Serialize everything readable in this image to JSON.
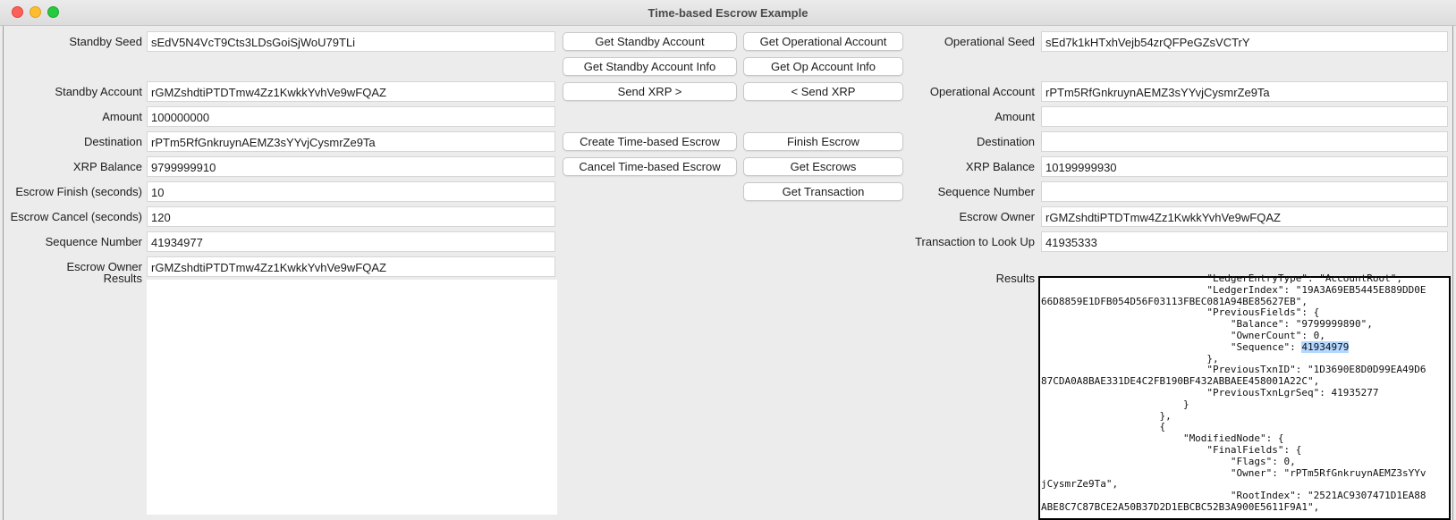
{
  "window": {
    "title": "Time-based Escrow Example"
  },
  "standby": {
    "fields": [
      {
        "label": "Standby Seed",
        "value": "sEdV5N4VcT9Cts3LDsGoiSjWoU79TLi"
      },
      {
        "label": "Standby Account",
        "value": "rGMZshdtiPTDTmw4Zz1KwkkYvhVe9wFQAZ"
      },
      {
        "label": "Amount",
        "value": "100000000"
      },
      {
        "label": "Destination",
        "value": "rPTm5RfGnkruynAEMZ3sYYvjCysmrZe9Ta"
      },
      {
        "label": "XRP Balance",
        "value": "9799999910"
      },
      {
        "label": "Escrow Finish (seconds)",
        "value": "10"
      },
      {
        "label": "Escrow Cancel (seconds)",
        "value": "120"
      },
      {
        "label": "Sequence Number",
        "value": "41934977"
      },
      {
        "label": "Escrow Owner",
        "value": "rGMZshdtiPTDTmw4Zz1KwkkYvhVe9wFQAZ"
      }
    ],
    "results_label": "Results",
    "results_value": ""
  },
  "operational": {
    "fields": [
      {
        "label": "Operational Seed",
        "value": "sEd7k1kHTxhVejb54zrQFPeGZsVCTrY"
      },
      {
        "label": "Operational Account",
        "value": "rPTm5RfGnkruynAEMZ3sYYvjCysmrZe9Ta"
      },
      {
        "label": "Amount",
        "value": ""
      },
      {
        "label": "Destination",
        "value": ""
      },
      {
        "label": "XRP Balance",
        "value": "10199999930"
      },
      {
        "label": "Sequence Number",
        "value": ""
      },
      {
        "label": "Escrow Owner",
        "value": "rGMZshdtiPTDTmw4Zz1KwkkYvhVe9wFQAZ"
      },
      {
        "label": "Transaction to Look Up",
        "value": "41935333"
      }
    ],
    "results_label": "Results",
    "results_lines": [
      "                            \"LedgerEntryType\": \"AccountRoot\",",
      "                            \"LedgerIndex\": \"19A3A69EB5445E889DD0E",
      "66D8859E1DFB054D56F03113FBEC081A94BE85627EB\",",
      "                            \"PreviousFields\": {",
      "                                \"Balance\": \"9799999890\",",
      "                                \"OwnerCount\": 0,",
      "                                \"Sequence\": ",
      "                            },",
      "                            \"PreviousTxnID\": \"1D3690E8D0D99EA49D6",
      "87CDA0A8BAE331DE4C2FB190BF432ABBAEE458001A22C\",",
      "                            \"PreviousTxnLgrSeq\": 41935277",
      "                        }",
      "                    },",
      "                    {",
      "                        \"ModifiedNode\": {",
      "                            \"FinalFields\": {",
      "                                \"Flags\": 0,",
      "                                \"Owner\": \"rPTm5RfGnkruynAEMZ3sYYv",
      "jCysmrZe9Ta\",",
      "                                \"RootIndex\": \"2521AC9307471D1EA88",
      "ABE8C7C87BCE2A50B37D2D1EBCBC52B3A900E5611F9A1\","
    ],
    "selection": {
      "line": 6,
      "text": "41934979"
    }
  },
  "buttons": {
    "standby": [
      "Get Standby Account",
      "Get Standby Account Info",
      "Send XRP >",
      "Create Time-based Escrow",
      "Cancel Time-based Escrow"
    ],
    "operational": [
      "Get Operational Account",
      "Get Op Account Info",
      "< Send XRP",
      "Finish Escrow",
      "Get Escrows",
      "Get Transaction"
    ]
  },
  "colors": {
    "selection": "#b3d7ff",
    "close": "#fe5f57",
    "minimize": "#febc2e",
    "zoom": "#28c840"
  }
}
